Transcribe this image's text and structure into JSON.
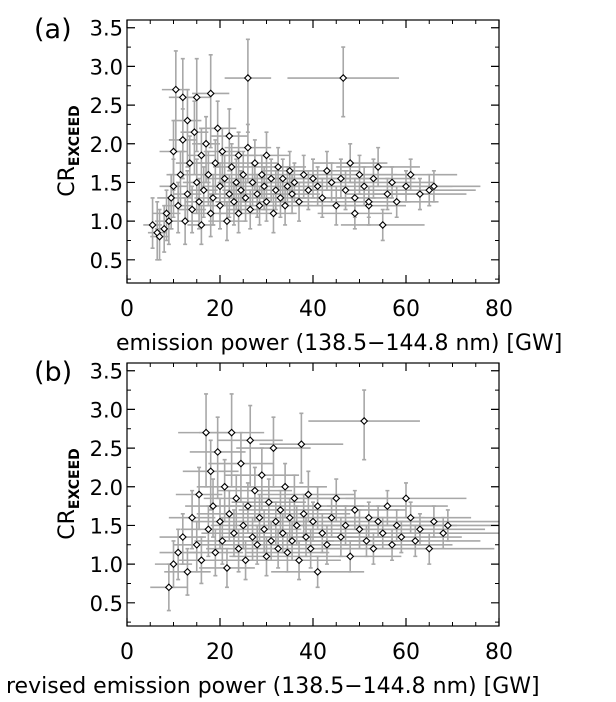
{
  "chart_data": [
    {
      "type": "scatter",
      "panel_label": "(a)",
      "xlabel": "emission power (138.5−144.8 nm) [GW]",
      "ylabel_main": "CR",
      "ylabel_sub": "EXCEED",
      "xlim": [
        0,
        80
      ],
      "ylim": [
        0.2,
        3.6
      ],
      "xticks": [
        "0",
        "20",
        "40",
        "60",
        "80"
      ],
      "yticks": [
        "0.5",
        "1.0",
        "1.5",
        "2.0",
        "2.5",
        "3.0",
        "3.5"
      ],
      "grid": false,
      "marker": "diamond",
      "errorbar_color": "#a8a8a8",
      "marker_color": "#000000",
      "points": [
        [
          5.5,
          0.95,
          0.3,
          2,
          0.35
        ],
        [
          6.5,
          0.85,
          0.35,
          2,
          0.4
        ],
        [
          7,
          0.8,
          0.3,
          2,
          0.35
        ],
        [
          8,
          0.9,
          0.3,
          2,
          0.3
        ],
        [
          8.5,
          1.1,
          0.35,
          3,
          0.3
        ],
        [
          9,
          1.0,
          0.3,
          3,
          0.3
        ],
        [
          9.5,
          1.3,
          0.4,
          3,
          0.3
        ],
        [
          10,
          1.45,
          0.4,
          3,
          0.35
        ],
        [
          10,
          1.9,
          0.5,
          3,
          0.4
        ],
        [
          10.5,
          2.7,
          0.8,
          3,
          0.5
        ],
        [
          11,
          1.2,
          0.35,
          3,
          0.3
        ],
        [
          11.5,
          1.6,
          0.4,
          3,
          0.3
        ],
        [
          12,
          2.6,
          0.7,
          3,
          0.5
        ],
        [
          12,
          2.05,
          0.5,
          3,
          0.4
        ],
        [
          12.5,
          1.0,
          0.3,
          3,
          0.3
        ],
        [
          13,
          1.35,
          0.35,
          3,
          0.3
        ],
        [
          13,
          2.3,
          0.6,
          3,
          0.4
        ],
        [
          13.5,
          1.75,
          0.45,
          3,
          0.35
        ],
        [
          14,
          1.15,
          0.3,
          3,
          0.3
        ],
        [
          14.5,
          2.15,
          0.55,
          3,
          0.4
        ],
        [
          15,
          1.5,
          0.4,
          3,
          0.3
        ],
        [
          15,
          2.6,
          0.7,
          3,
          0.5
        ],
        [
          15.5,
          1.25,
          0.35,
          3,
          0.3
        ],
        [
          16,
          1.85,
          0.45,
          3,
          0.35
        ],
        [
          16,
          0.95,
          0.25,
          3,
          0.25
        ],
        [
          16.5,
          1.4,
          0.35,
          3,
          0.3
        ],
        [
          17,
          2.0,
          0.5,
          3,
          0.35
        ],
        [
          17.5,
          1.6,
          0.4,
          3,
          0.3
        ],
        [
          18,
          2.65,
          0.7,
          4,
          0.5
        ],
        [
          18,
          1.1,
          0.3,
          4,
          0.25
        ],
        [
          18.5,
          1.3,
          0.35,
          4,
          0.3
        ],
        [
          19,
          1.75,
          0.4,
          4,
          0.3
        ],
        [
          19.5,
          2.2,
          0.5,
          4,
          0.35
        ],
        [
          20,
          1.45,
          0.35,
          4,
          0.3
        ],
        [
          20,
          1.2,
          0.3,
          4,
          0.25
        ],
        [
          20.5,
          1.9,
          0.45,
          4,
          0.3
        ],
        [
          21,
          1.55,
          0.35,
          4,
          0.3
        ],
        [
          21.5,
          1.0,
          0.25,
          4,
          0.25
        ],
        [
          22,
          1.35,
          0.3,
          4,
          0.25
        ],
        [
          22,
          2.1,
          0.45,
          4,
          0.35
        ],
        [
          22.5,
          1.7,
          0.4,
          4,
          0.3
        ],
        [
          23,
          1.25,
          0.3,
          4,
          0.25
        ],
        [
          23.5,
          1.5,
          0.35,
          4,
          0.3
        ],
        [
          24,
          1.85,
          0.4,
          4,
          0.3
        ],
        [
          24,
          1.1,
          0.25,
          4,
          0.25
        ],
        [
          24.5,
          1.4,
          0.3,
          4,
          0.25
        ],
        [
          25,
          1.6,
          0.35,
          5,
          0.3
        ],
        [
          25.5,
          1.3,
          0.3,
          5,
          0.25
        ],
        [
          26,
          2.85,
          0.7,
          5,
          0.5
        ],
        [
          26,
          1.95,
          0.45,
          5,
          0.3
        ],
        [
          26.5,
          1.15,
          0.25,
          5,
          0.25
        ],
        [
          27,
          1.5,
          0.3,
          5,
          0.25
        ],
        [
          27.5,
          1.75,
          0.35,
          5,
          0.3
        ],
        [
          28,
          1.35,
          0.3,
          5,
          0.25
        ],
        [
          28.5,
          1.2,
          0.25,
          5,
          0.25
        ],
        [
          29,
          1.6,
          0.3,
          5,
          0.25
        ],
        [
          29.5,
          1.45,
          0.3,
          5,
          0.25
        ],
        [
          30,
          1.85,
          0.35,
          5,
          0.3
        ],
        [
          30,
          1.25,
          0.25,
          5,
          0.25
        ],
        [
          31,
          1.55,
          0.3,
          5,
          0.25
        ],
        [
          31.5,
          1.1,
          0.25,
          5,
          0.25
        ],
        [
          32,
          1.4,
          0.25,
          6,
          0.25
        ],
        [
          32.5,
          1.7,
          0.3,
          6,
          0.25
        ],
        [
          33,
          1.3,
          0.25,
          6,
          0.25
        ],
        [
          33.5,
          1.55,
          0.3,
          6,
          0.25
        ],
        [
          34,
          1.2,
          0.25,
          6,
          0.25
        ],
        [
          34.5,
          1.45,
          0.25,
          6,
          0.25
        ],
        [
          35,
          1.65,
          0.3,
          6,
          0.25
        ],
        [
          35.5,
          1.35,
          0.25,
          6,
          0.25
        ],
        [
          36,
          1.5,
          0.25,
          6,
          0.25
        ],
        [
          37,
          1.25,
          0.25,
          6,
          0.25
        ],
        [
          38,
          1.6,
          0.3,
          6,
          0.25
        ],
        [
          39,
          1.4,
          0.25,
          7,
          0.25
        ],
        [
          40,
          1.55,
          0.25,
          7,
          0.25
        ],
        [
          41,
          1.45,
          0.25,
          7,
          0.25
        ],
        [
          42,
          1.3,
          0.25,
          7,
          0.25
        ],
        [
          43,
          1.65,
          0.25,
          7,
          0.25
        ],
        [
          44,
          1.5,
          0.25,
          7,
          0.25
        ],
        [
          45,
          1.2,
          0.25,
          7,
          0.25
        ],
        [
          46,
          1.55,
          0.25,
          7,
          0.25
        ],
        [
          46.5,
          2.85,
          0.5,
          12,
          0.4
        ],
        [
          47,
          1.4,
          0.25,
          8,
          0.25
        ],
        [
          48,
          1.75,
          0.25,
          8,
          0.25
        ],
        [
          49,
          1.3,
          0.25,
          8,
          0.25
        ],
        [
          50,
          1.6,
          0.25,
          8,
          0.25
        ],
        [
          51,
          1.45,
          0.25,
          8,
          0.25
        ],
        [
          52,
          1.2,
          0.25,
          8,
          0.25
        ],
        [
          53,
          1.55,
          0.25,
          9,
          0.25
        ],
        [
          54,
          1.7,
          0.25,
          9,
          0.25
        ],
        [
          55,
          0.95,
          0.2,
          9,
          0.2
        ],
        [
          56,
          1.35,
          0.2,
          9,
          0.2
        ],
        [
          57,
          1.5,
          0.2,
          9,
          0.2
        ],
        [
          58,
          1.25,
          0.2,
          9,
          0.2
        ],
        [
          60,
          1.45,
          0.2,
          10,
          0.2
        ],
        [
          61,
          1.6,
          0.2,
          10,
          0.2
        ],
        [
          63,
          1.35,
          0.2,
          10,
          0.2
        ],
        [
          65,
          1.4,
          0.2,
          10,
          0.2
        ],
        [
          66,
          1.45,
          0.2,
          10,
          0.2
        ],
        [
          52,
          1.25,
          0.2,
          9,
          0.2
        ],
        [
          49,
          1.1,
          0.2,
          8,
          0.2
        ]
      ]
    },
    {
      "type": "scatter",
      "panel_label": "(b)",
      "xlabel": "revised emission power (138.5−144.8 nm) [GW]",
      "ylabel_main": "CR",
      "ylabel_sub": "EXCEED",
      "xlim": [
        0,
        80
      ],
      "ylim": [
        0.2,
        3.6
      ],
      "xticks": [
        "0",
        "20",
        "40",
        "60",
        "80"
      ],
      "yticks": [
        "0.5",
        "1.0",
        "1.5",
        "2.0",
        "2.5",
        "3.0",
        "3.5"
      ],
      "grid": false,
      "marker": "diamond",
      "errorbar_color": "#a8a8a8",
      "marker_color": "#000000",
      "points": [
        [
          9,
          0.7,
          0.3,
          4,
          0.3
        ],
        [
          10,
          1.0,
          0.3,
          4,
          0.3
        ],
        [
          11,
          1.15,
          0.35,
          4,
          0.3
        ],
        [
          12,
          1.35,
          0.35,
          5,
          0.3
        ],
        [
          13,
          0.9,
          0.3,
          5,
          0.3
        ],
        [
          14,
          1.6,
          0.4,
          5,
          0.35
        ],
        [
          15,
          1.25,
          0.35,
          5,
          0.3
        ],
        [
          15.5,
          1.9,
          0.45,
          5,
          0.35
        ],
        [
          16,
          1.05,
          0.3,
          5,
          0.3
        ],
        [
          17,
          2.7,
          0.7,
          6,
          0.5
        ],
        [
          17.5,
          1.45,
          0.35,
          6,
          0.3
        ],
        [
          18,
          2.2,
          0.5,
          6,
          0.4
        ],
        [
          18.5,
          1.75,
          0.4,
          6,
          0.35
        ],
        [
          19,
          1.15,
          0.3,
          6,
          0.3
        ],
        [
          19.5,
          2.45,
          0.6,
          6,
          0.45
        ],
        [
          20,
          1.55,
          0.35,
          6,
          0.3
        ],
        [
          20.5,
          1.3,
          0.3,
          6,
          0.3
        ],
        [
          21,
          2.0,
          0.45,
          6,
          0.35
        ],
        [
          21.5,
          0.95,
          0.25,
          6,
          0.25
        ],
        [
          22,
          1.65,
          0.35,
          7,
          0.3
        ],
        [
          22.5,
          2.7,
          0.7,
          7,
          0.5
        ],
        [
          23,
          1.4,
          0.3,
          7,
          0.3
        ],
        [
          23.5,
          1.85,
          0.4,
          7,
          0.3
        ],
        [
          24,
          1.2,
          0.3,
          7,
          0.25
        ],
        [
          24.5,
          2.3,
          0.5,
          7,
          0.4
        ],
        [
          25,
          1.5,
          0.3,
          7,
          0.3
        ],
        [
          25.5,
          1.05,
          0.25,
          7,
          0.25
        ],
        [
          26,
          1.75,
          0.35,
          7,
          0.3
        ],
        [
          26.5,
          2.6,
          0.6,
          7,
          0.45
        ],
        [
          27,
          1.35,
          0.3,
          7,
          0.25
        ],
        [
          27.5,
          1.95,
          0.4,
          8,
          0.3
        ],
        [
          28,
          1.25,
          0.25,
          8,
          0.25
        ],
        [
          28.5,
          1.6,
          0.3,
          8,
          0.3
        ],
        [
          29,
          2.15,
          0.45,
          8,
          0.35
        ],
        [
          29.5,
          1.45,
          0.3,
          8,
          0.25
        ],
        [
          30,
          1.1,
          0.25,
          8,
          0.25
        ],
        [
          30.5,
          1.8,
          0.35,
          8,
          0.3
        ],
        [
          31,
          1.3,
          0.25,
          8,
          0.25
        ],
        [
          31.5,
          2.5,
          0.5,
          8,
          0.4
        ],
        [
          32,
          1.55,
          0.3,
          8,
          0.25
        ],
        [
          32.5,
          1.2,
          0.25,
          8,
          0.25
        ],
        [
          33,
          1.7,
          0.3,
          9,
          0.25
        ],
        [
          33.5,
          1.4,
          0.25,
          9,
          0.25
        ],
        [
          34,
          2.0,
          0.4,
          9,
          0.3
        ],
        [
          34.5,
          1.15,
          0.25,
          9,
          0.25
        ],
        [
          35,
          1.6,
          0.3,
          9,
          0.25
        ],
        [
          35.5,
          1.3,
          0.25,
          9,
          0.25
        ],
        [
          36,
          1.85,
          0.35,
          9,
          0.3
        ],
        [
          36.5,
          1.5,
          0.25,
          9,
          0.25
        ],
        [
          37,
          1.05,
          0.25,
          9,
          0.25
        ],
        [
          37.5,
          2.55,
          0.5,
          9,
          0.4
        ],
        [
          38,
          1.65,
          0.3,
          10,
          0.25
        ],
        [
          38.5,
          1.35,
          0.25,
          10,
          0.25
        ],
        [
          39,
          1.9,
          0.35,
          10,
          0.3
        ],
        [
          39.5,
          1.2,
          0.25,
          10,
          0.25
        ],
        [
          40,
          1.55,
          0.25,
          10,
          0.25
        ],
        [
          41,
          1.75,
          0.3,
          10,
          0.25
        ],
        [
          42,
          1.4,
          0.25,
          10,
          0.25
        ],
        [
          43,
          1.25,
          0.25,
          10,
          0.25
        ],
        [
          44,
          1.6,
          0.25,
          11,
          0.25
        ],
        [
          45,
          1.85,
          0.3,
          11,
          0.25
        ],
        [
          46,
          1.35,
          0.25,
          11,
          0.25
        ],
        [
          47,
          1.5,
          0.25,
          11,
          0.25
        ],
        [
          48,
          1.1,
          0.2,
          11,
          0.2
        ],
        [
          49,
          1.7,
          0.25,
          11,
          0.25
        ],
        [
          50,
          1.45,
          0.25,
          12,
          0.25
        ],
        [
          51,
          2.85,
          0.5,
          12,
          0.4
        ],
        [
          51.5,
          1.3,
          0.2,
          12,
          0.2
        ],
        [
          52,
          1.6,
          0.25,
          12,
          0.2
        ],
        [
          53,
          1.2,
          0.2,
          12,
          0.2
        ],
        [
          54,
          1.55,
          0.2,
          12,
          0.2
        ],
        [
          55,
          1.4,
          0.2,
          12,
          0.2
        ],
        [
          56,
          1.75,
          0.25,
          13,
          0.2
        ],
        [
          57,
          1.25,
          0.2,
          13,
          0.2
        ],
        [
          58,
          1.5,
          0.2,
          13,
          0.2
        ],
        [
          59,
          1.35,
          0.2,
          13,
          0.2
        ],
        [
          60,
          1.85,
          0.25,
          13,
          0.2
        ],
        [
          61,
          1.6,
          0.2,
          13,
          0.2
        ],
        [
          62,
          1.3,
          0.2,
          14,
          0.2
        ],
        [
          63,
          1.45,
          0.2,
          14,
          0.2
        ],
        [
          65,
          1.2,
          0.2,
          14,
          0.2
        ],
        [
          66,
          1.55,
          0.2,
          14,
          0.2
        ],
        [
          68,
          1.4,
          0.2,
          14,
          0.2
        ],
        [
          69,
          1.5,
          0.2,
          14,
          0.2
        ],
        [
          41,
          0.9,
          0.2,
          10,
          0.2
        ]
      ]
    }
  ]
}
